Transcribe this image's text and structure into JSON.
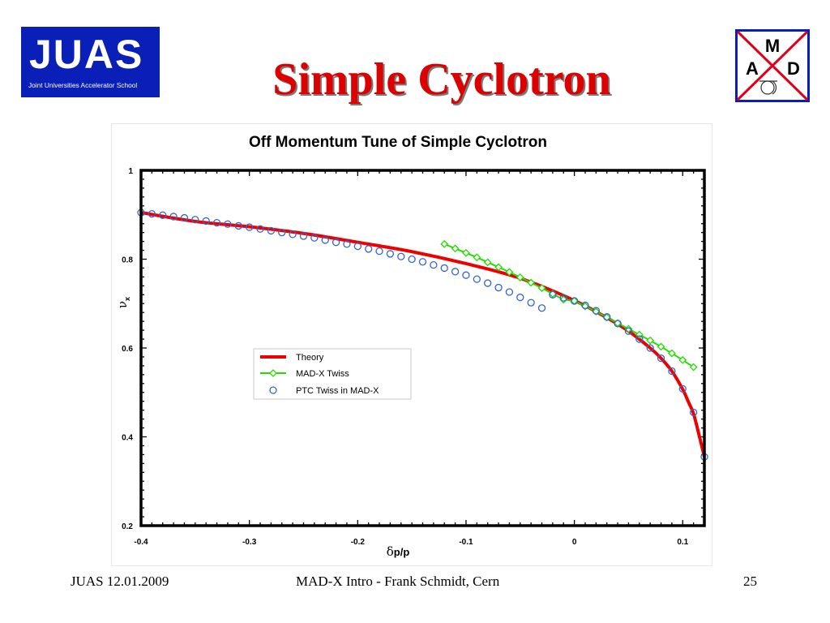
{
  "header": {
    "logo_left_big": "JUAS",
    "logo_left_small": "Joint Universities Accelerator School",
    "title": "Simple Cyclotron",
    "logo_right": {
      "top": "M",
      "left": "A",
      "right": "D"
    }
  },
  "footer": {
    "left": "JUAS 12.01.2009",
    "center": "MAD-X Intro - Frank Schmidt, Cern",
    "right": "25"
  },
  "colors": {
    "title": "#dd0000",
    "logo_blue": "#0a1fb8",
    "logo_red": "#e0001a",
    "theory": "#ee0000",
    "madx": "#22dd00",
    "ptc": "#3366cc"
  },
  "chart_data": {
    "type": "line",
    "title": "Off Momentum Tune of Simple Cyclotron",
    "xlabel_greek": "δ",
    "xlabel": "p/p",
    "ylabel_greek": "ν",
    "ylabel_sub": "x",
    "xlim": [
      -0.4,
      0.12
    ],
    "ylim": [
      0.2,
      1.0
    ],
    "xticks": [
      -0.4,
      -0.3,
      -0.2,
      -0.1,
      0,
      0.1
    ],
    "xtick_labels": [
      "-0.4",
      "-0.3",
      "-0.2",
      "-0.1",
      "0",
      "0.1"
    ],
    "yticks": [
      0.2,
      0.4,
      0.6,
      0.8,
      1.0
    ],
    "ytick_labels": [
      "0.2",
      "0.4",
      "0.6",
      "0.8",
      "1"
    ],
    "grid": false,
    "legend_position": "center-left",
    "series": [
      {
        "name": "Theory",
        "marker": "none",
        "x": [
          -0.4,
          -0.35,
          -0.3,
          -0.25,
          -0.2,
          -0.15,
          -0.1,
          -0.05,
          0.0,
          0.03,
          0.05,
          0.07,
          0.08,
          0.09,
          0.1,
          0.105,
          0.11,
          0.115,
          0.12
        ],
        "y": [
          0.905,
          0.885,
          0.873,
          0.858,
          0.838,
          0.817,
          0.79,
          0.757,
          0.707,
          0.668,
          0.638,
          0.6,
          0.577,
          0.548,
          0.507,
          0.48,
          0.452,
          0.405,
          0.355
        ]
      },
      {
        "name": "MAD-X Twiss",
        "marker": "diamond",
        "x": [
          -0.12,
          -0.11,
          -0.1,
          -0.09,
          -0.08,
          -0.07,
          -0.06,
          -0.05,
          -0.04,
          -0.03,
          -0.02,
          -0.01,
          0.0,
          0.01,
          0.02,
          0.03,
          0.04,
          0.05,
          0.06,
          0.07,
          0.08,
          0.09,
          0.1,
          0.11
        ],
        "y": [
          0.834,
          0.824,
          0.814,
          0.804,
          0.793,
          0.782,
          0.771,
          0.759,
          0.747,
          0.735,
          0.722,
          0.709,
          0.706,
          0.694,
          0.682,
          0.669,
          0.656,
          0.643,
          0.63,
          0.617,
          0.603,
          0.588,
          0.573,
          0.557
        ]
      },
      {
        "name": "PTC Twiss in MAD-X",
        "marker": "circle",
        "x": [
          -0.4,
          -0.39,
          -0.38,
          -0.37,
          -0.36,
          -0.35,
          -0.34,
          -0.33,
          -0.32,
          -0.31,
          -0.3,
          -0.29,
          -0.28,
          -0.27,
          -0.26,
          -0.25,
          -0.24,
          -0.23,
          -0.22,
          -0.21,
          -0.2,
          -0.19,
          -0.18,
          -0.17,
          -0.16,
          -0.15,
          -0.14,
          -0.13,
          -0.12,
          -0.11,
          -0.1,
          -0.09,
          -0.08,
          -0.07,
          -0.06,
          -0.05,
          -0.04,
          -0.03,
          -0.02,
          -0.01,
          0.0,
          0.01,
          0.02,
          0.03,
          0.04,
          0.05,
          0.06,
          0.07,
          0.08,
          0.09,
          0.1,
          0.11,
          0.12
        ],
        "y": [
          0.905,
          0.902,
          0.899,
          0.896,
          0.893,
          0.889,
          0.886,
          0.882,
          0.879,
          0.875,
          0.872,
          0.868,
          0.864,
          0.86,
          0.856,
          0.852,
          0.848,
          0.843,
          0.838,
          0.834,
          0.829,
          0.823,
          0.818,
          0.812,
          0.806,
          0.8,
          0.794,
          0.787,
          0.78,
          0.772,
          0.764,
          0.755,
          0.746,
          0.736,
          0.726,
          0.714,
          0.702,
          0.69,
          0.72,
          0.713,
          0.706,
          0.696,
          0.684,
          0.67,
          0.655,
          0.638,
          0.62,
          0.6,
          0.577,
          0.548,
          0.508,
          0.455,
          0.355
        ]
      }
    ]
  }
}
